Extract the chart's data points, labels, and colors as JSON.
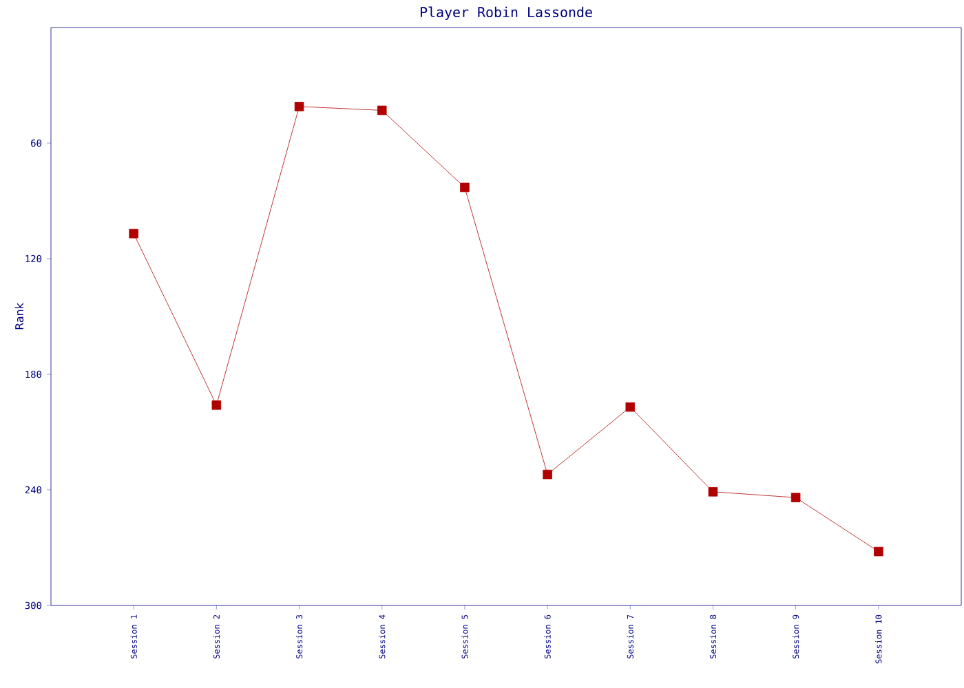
{
  "chart_data": {
    "type": "line",
    "title": "Player Robin Lassonde",
    "ylabel": "Rank",
    "categories": [
      "Session 1",
      "Session 2",
      "Session 3",
      "Session 4",
      "Session 5",
      "Session 6",
      "Session 7",
      "Session 8",
      "Session 9",
      "Session 10"
    ],
    "series": [
      {
        "color": "#b00000",
        "values": [
          107,
          196,
          41,
          43,
          83,
          232,
          197,
          241,
          244,
          272
        ]
      }
    ],
    "ylim": [
      300,
      0
    ],
    "yticks": [
      60,
      120,
      180,
      240,
      300
    ],
    "marker": "square",
    "line_style": "solid"
  }
}
